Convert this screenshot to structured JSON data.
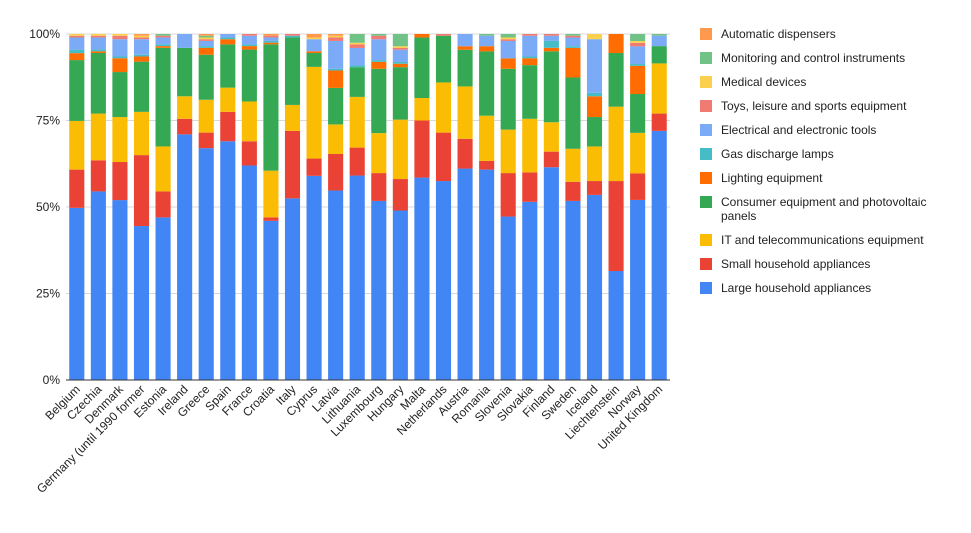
{
  "chart_data": {
    "type": "bar",
    "stacked": "percent",
    "legend_position": "right",
    "grid": true,
    "ylim": [
      0,
      100
    ],
    "y_ticks": [
      "0%",
      "25%",
      "50%",
      "75%",
      "100%"
    ],
    "categories": [
      "Belgium",
      "Czechia",
      "Denmark",
      "Germany (until 1990 former",
      "Estonia",
      "Ireland",
      "Greece",
      "Spain",
      "France",
      "Croatia",
      "Italy",
      "Cyprus",
      "Latvia",
      "Lithuania",
      "Luxembourg",
      "Hungary",
      "Malta",
      "Netherlands",
      "Austria",
      "Romania",
      "Slovenia",
      "Slovakia",
      "Finland",
      "Sweden",
      "Iceland",
      "Liechtenstein",
      "Norway",
      "United Kingdom"
    ],
    "series": [
      {
        "name": "Large household appliances",
        "color": "#4285F4",
        "values": [
          49.5,
          54.5,
          52,
          44.5,
          47,
          71,
          67,
          69,
          62,
          46,
          52.5,
          59,
          54.5,
          58.5,
          51.5,
          48.5,
          58.5,
          57.5,
          60.5,
          60.5,
          47,
          51.5,
          61.5,
          51.5,
          53.5,
          31.5,
          51,
          72
        ]
      },
      {
        "name": "Small household appliances",
        "color": "#EA4335",
        "values": [
          11,
          9,
          11,
          20.5,
          7.5,
          4.5,
          4.5,
          8.5,
          7,
          1,
          19.5,
          5,
          10.5,
          8,
          8,
          9,
          16.5,
          14,
          8.5,
          2.5,
          12.5,
          8.5,
          4.5,
          5.5,
          4,
          26,
          7.5,
          5
        ]
      },
      {
        "name": "IT and telecommunications equipment",
        "color": "#FBBC04",
        "values": [
          14,
          13.5,
          13,
          12.5,
          13,
          6.5,
          9.5,
          7,
          11.5,
          13.5,
          7.5,
          26.5,
          8.5,
          14.5,
          11.5,
          17,
          6.5,
          14.5,
          15,
          13,
          12.5,
          15.5,
          8.5,
          9.5,
          10,
          21.5,
          11.5,
          14.5
        ]
      },
      {
        "name": "Consumer equipment and photovoltaic panels",
        "color": "#34A853",
        "values": [
          17.5,
          17.5,
          13,
          14.5,
          28.5,
          14,
          13,
          12.5,
          15,
          36.5,
          19.5,
          4,
          10.5,
          8.5,
          18.5,
          15,
          17.5,
          13.5,
          10.5,
          18.5,
          17.5,
          15.5,
          20.5,
          20.5,
          8.5,
          15.5,
          11,
          5
        ]
      },
      {
        "name": "Lighting equipment",
        "color": "#FF6D01",
        "values": [
          2,
          0.5,
          4,
          1.5,
          0.5,
          0,
          2,
          1.5,
          1,
          0.5,
          0,
          0.5,
          5,
          0,
          2,
          1,
          1,
          0,
          1,
          1.5,
          3,
          2,
          1,
          8.5,
          6,
          5.5,
          8,
          0
        ]
      },
      {
        "name": "Gas discharge lamps",
        "color": "#46BDC6",
        "values": [
          1,
          0.5,
          0.5,
          0.5,
          0.5,
          0,
          0.5,
          0.5,
          0.5,
          0.5,
          0.5,
          0,
          0.5,
          0.5,
          0.5,
          0.5,
          0,
          0,
          0,
          0,
          0,
          0.5,
          2,
          0.5,
          1,
          0,
          0.5,
          0
        ]
      },
      {
        "name": "Electrical and electronic tools",
        "color": "#7BAAF7",
        "values": [
          3.5,
          3.5,
          5,
          4.5,
          2,
          4,
          1.5,
          1,
          2.5,
          1,
          0,
          3.5,
          8,
          5,
          6,
          3.5,
          0,
          0,
          3.5,
          3,
          5,
          6,
          1.5,
          2.5,
          15.5,
          0,
          5,
          3
        ]
      },
      {
        "name": "Toys, leisure and sports equipment",
        "color": "#F07B72",
        "values": [
          0.5,
          0.5,
          1,
          0.5,
          0.5,
          0,
          0.5,
          0,
          0.5,
          0.5,
          0.5,
          0,
          1,
          1,
          1,
          0.5,
          0,
          0.5,
          0,
          0,
          0.5,
          0.5,
          0.5,
          0.5,
          0,
          0,
          1,
          0
        ]
      },
      {
        "name": "Medical devices",
        "color": "#FCD04F",
        "values": [
          0.5,
          0.5,
          0.5,
          0.5,
          0,
          0,
          0.5,
          0,
          0,
          0,
          0,
          0.5,
          0.5,
          0.5,
          0,
          0.5,
          0,
          0,
          0,
          0,
          0.5,
          0,
          0,
          0,
          1.5,
          0,
          0.5,
          0
        ]
      },
      {
        "name": "Monitoring and control instruments",
        "color": "#71C287",
        "values": [
          0,
          0,
          0,
          0,
          0.5,
          0,
          0.5,
          0,
          0,
          0,
          0,
          0,
          0,
          2.5,
          0.5,
          3.5,
          0,
          0,
          0,
          0.5,
          1,
          0,
          0,
          0.5,
          0,
          0,
          2,
          0.5
        ]
      },
      {
        "name": "Automatic dispensers",
        "color": "#FF994D",
        "values": [
          0,
          0,
          0,
          0.5,
          0,
          0,
          0.5,
          0,
          0,
          0.5,
          0,
          1,
          0.5,
          0,
          0,
          0,
          0,
          0,
          0,
          0,
          0,
          0,
          0,
          0,
          0,
          0,
          0,
          0
        ]
      }
    ]
  }
}
